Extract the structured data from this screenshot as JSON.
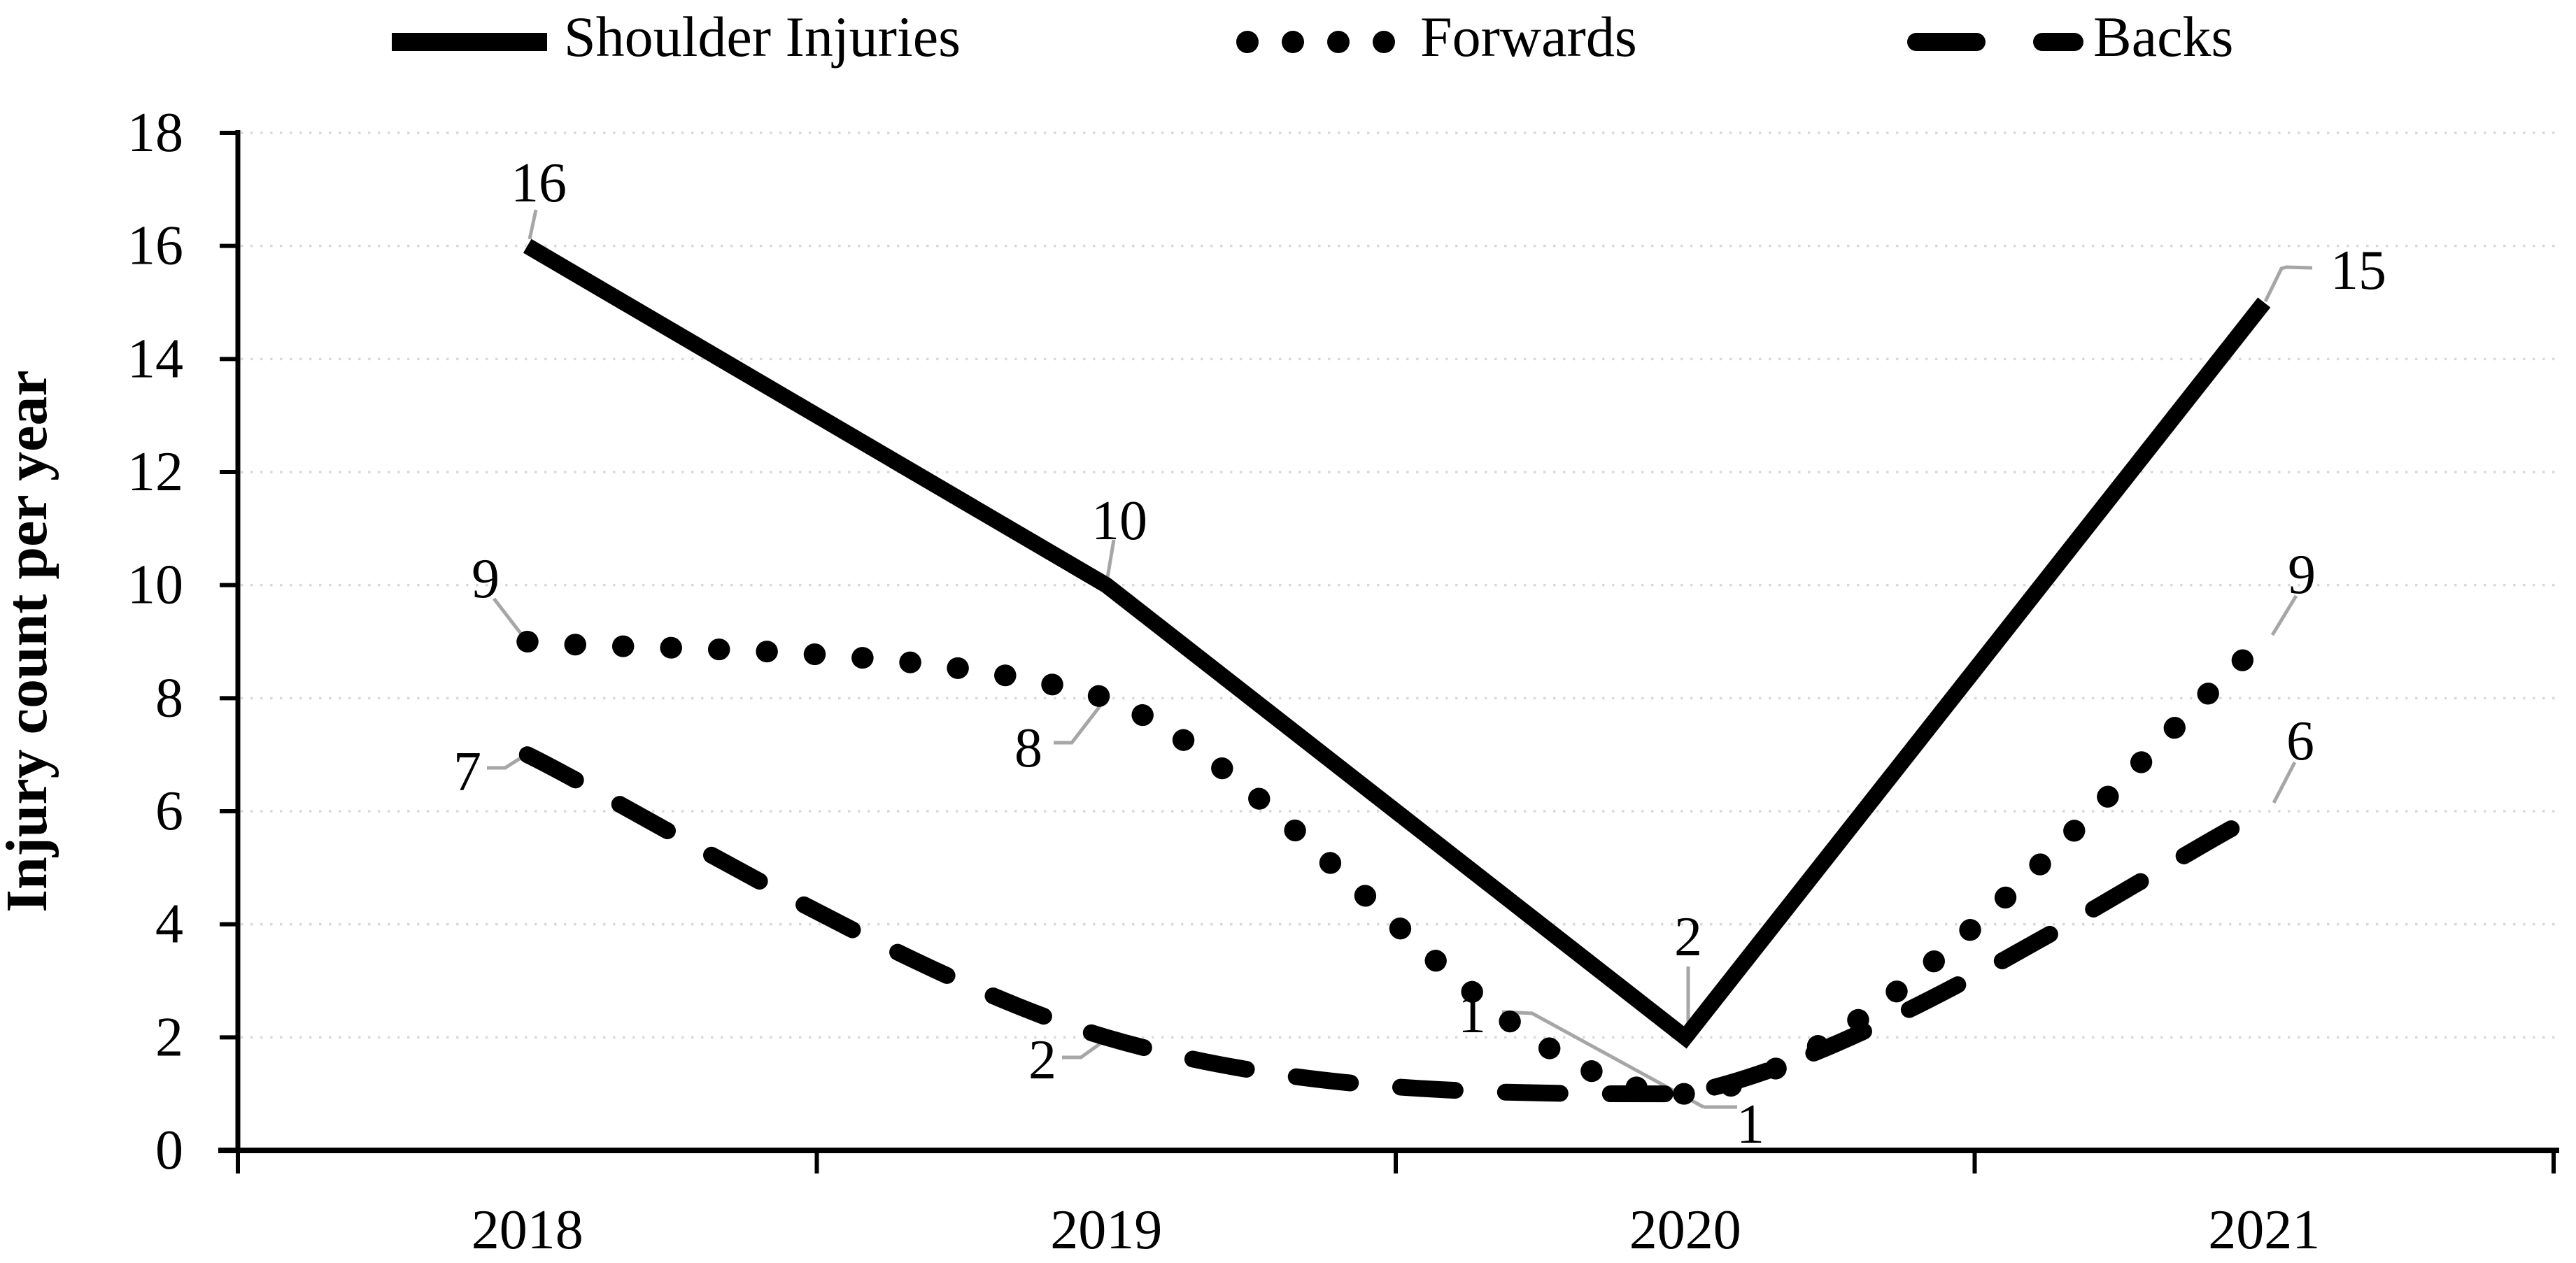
{
  "chart_data": {
    "type": "line",
    "title": "",
    "categories": [
      "2018",
      "2019",
      "2020",
      "2021"
    ],
    "series": [
      {
        "name": "Shoulder Injuries",
        "line_style": "solid",
        "color": "#000000",
        "values": [
          16,
          10,
          2,
          15
        ],
        "data_labels": [
          "16",
          "10",
          "2",
          "15"
        ]
      },
      {
        "name": "Forwards",
        "line_style": "dotted",
        "color": "#000000",
        "values": [
          9,
          8,
          1,
          9
        ],
        "data_labels": [
          "9",
          "8",
          "1",
          "9"
        ]
      },
      {
        "name": "Backs",
        "line_style": "dashed",
        "color": "#000000",
        "values": [
          7,
          2,
          1,
          6
        ],
        "data_labels": [
          "7",
          "2",
          "1",
          "6"
        ]
      }
    ],
    "xlabel": "",
    "ylabel": "Injury count per year",
    "ylim": [
      0,
      18
    ],
    "yticks": [
      0,
      2,
      4,
      6,
      8,
      10,
      12,
      14,
      16,
      18
    ],
    "xticklabels": [
      "2018",
      "2019",
      "2020",
      "2021"
    ],
    "grid": "horizontal dotted",
    "legend_position": "top",
    "colors": {
      "series": "#000000",
      "leader_line": "#a6a6a6",
      "gridline": "#d9d9d9",
      "axis": "#000000",
      "background": "#ffffff",
      "text": "#000000"
    }
  }
}
